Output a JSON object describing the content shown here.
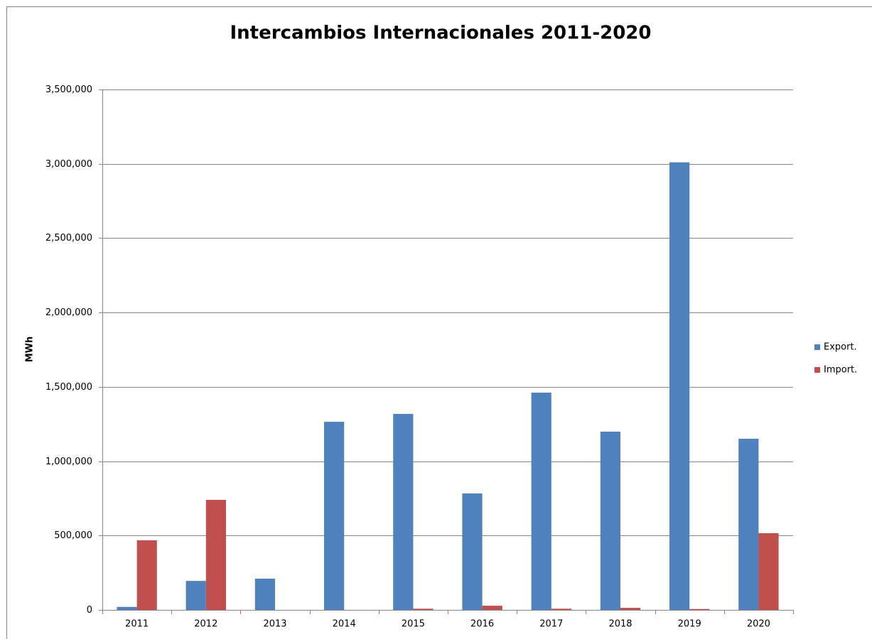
{
  "chart_data": {
    "type": "bar",
    "title": "Intercambios Internacionales  2011-2020",
    "y_label": "MWh",
    "categories": [
      "2011",
      "2012",
      "2013",
      "2014",
      "2015",
      "2016",
      "2017",
      "2018",
      "2019",
      "2020"
    ],
    "series": [
      {
        "name": "Export.",
        "color": "#4f81bd",
        "values": [
          20000,
          195000,
          210000,
          1265000,
          1318000,
          783000,
          1461000,
          1199000,
          3010000,
          1151000
        ]
      },
      {
        "name": "Import.",
        "color": "#c0504d",
        "values": [
          468000,
          740000,
          0,
          0,
          8000,
          28000,
          8000,
          14000,
          6000,
          516000
        ]
      }
    ],
    "ylim": [
      0,
      3500000
    ],
    "yticks": [
      0,
      {
        "value": 500000,
        "label": "500,000"
      },
      {
        "value": 1000000,
        "label": "1,000,000"
      },
      {
        "value": 1500000,
        "label": "1,500,000"
      },
      {
        "value": 2000000,
        "label": "2,000,000"
      },
      {
        "value": 2500000,
        "label": "2,500,000"
      },
      {
        "value": 3000000,
        "label": "3,000,000"
      },
      {
        "value": 3500000,
        "label": "3,500,000"
      }
    ],
    "grid": true,
    "legend": "right"
  }
}
